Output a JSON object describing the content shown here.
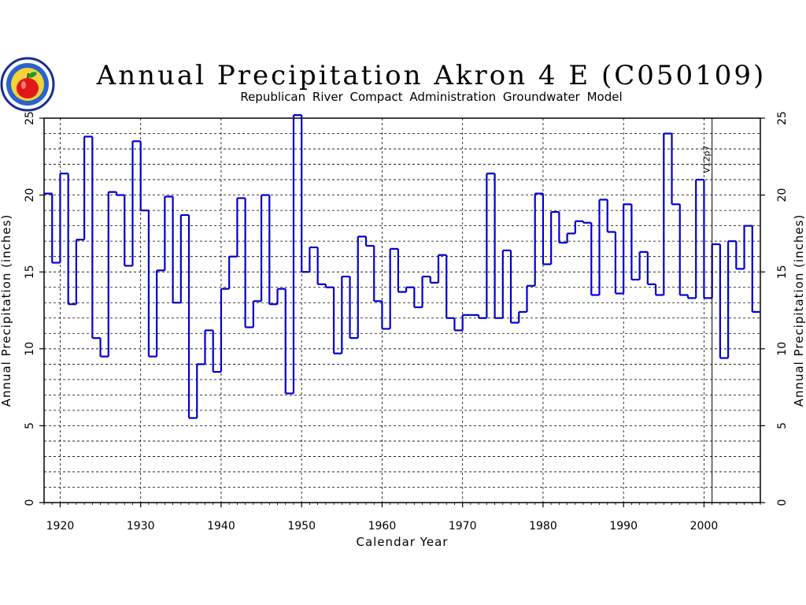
{
  "logo": {
    "icon": "apple-seal-icon",
    "text": "REPUBLICAN RIVER COMPACT"
  },
  "chart_data": {
    "type": "line",
    "step": true,
    "title": "Annual Precipitation Akron 4 E (C050109)",
    "subtitle": "Republican River Compact Administration Groundwater Model",
    "xlabel": "Calendar Year",
    "ylabel": "Annual Precipitation (inches)",
    "ylabel_right": "Annual Precipitation (inches)",
    "xlim": [
      1918,
      2007
    ],
    "ylim": [
      0,
      25
    ],
    "x_ticks": [
      1920,
      1930,
      1940,
      1950,
      1960,
      1970,
      1980,
      1990,
      2000
    ],
    "y_ticks": [
      0,
      5,
      10,
      15,
      20,
      25
    ],
    "grid": true,
    "line_color": "#0000cc",
    "marker_line": {
      "x": 2001,
      "label": "V12p7"
    },
    "x": [
      1918,
      1919,
      1920,
      1921,
      1922,
      1923,
      1924,
      1925,
      1926,
      1927,
      1928,
      1929,
      1930,
      1931,
      1932,
      1933,
      1934,
      1935,
      1936,
      1937,
      1938,
      1939,
      1940,
      1941,
      1942,
      1943,
      1944,
      1945,
      1946,
      1947,
      1948,
      1949,
      1950,
      1951,
      1952,
      1953,
      1954,
      1955,
      1956,
      1957,
      1958,
      1959,
      1960,
      1961,
      1962,
      1963,
      1964,
      1965,
      1966,
      1967,
      1968,
      1969,
      1970,
      1971,
      1972,
      1973,
      1974,
      1975,
      1976,
      1977,
      1978,
      1979,
      1980,
      1981,
      1982,
      1983,
      1984,
      1985,
      1986,
      1987,
      1988,
      1989,
      1990,
      1991,
      1992,
      1993,
      1994,
      1995,
      1996,
      1997,
      1998,
      1999,
      2000,
      2001,
      2002,
      2003,
      2004,
      2005,
      2006
    ],
    "values": [
      20.1,
      15.6,
      21.4,
      12.9,
      17.1,
      23.8,
      10.7,
      9.5,
      20.2,
      20.0,
      15.4,
      23.5,
      19.0,
      9.5,
      15.1,
      19.9,
      13.0,
      18.7,
      5.5,
      9.0,
      11.2,
      8.5,
      13.9,
      16.0,
      19.8,
      11.4,
      13.1,
      20.0,
      12.9,
      13.9,
      7.1,
      25.2,
      15.0,
      16.6,
      14.2,
      14.0,
      9.7,
      14.7,
      10.7,
      17.3,
      16.7,
      13.1,
      11.3,
      16.5,
      13.7,
      14.0,
      12.7,
      14.7,
      14.3,
      16.1,
      12.0,
      11.2,
      12.2,
      12.2,
      12.0,
      21.4,
      12.0,
      16.4,
      11.7,
      12.4,
      14.1,
      20.1,
      15.5,
      18.9,
      16.9,
      17.5,
      18.3,
      18.2,
      13.5,
      19.7,
      17.6,
      13.6,
      19.4,
      14.5,
      16.3,
      14.2,
      13.5,
      24.0,
      19.4,
      13.5,
      13.3,
      21.0,
      13.3,
      16.8,
      9.4,
      17.0,
      15.2,
      18.0,
      12.4
    ]
  }
}
